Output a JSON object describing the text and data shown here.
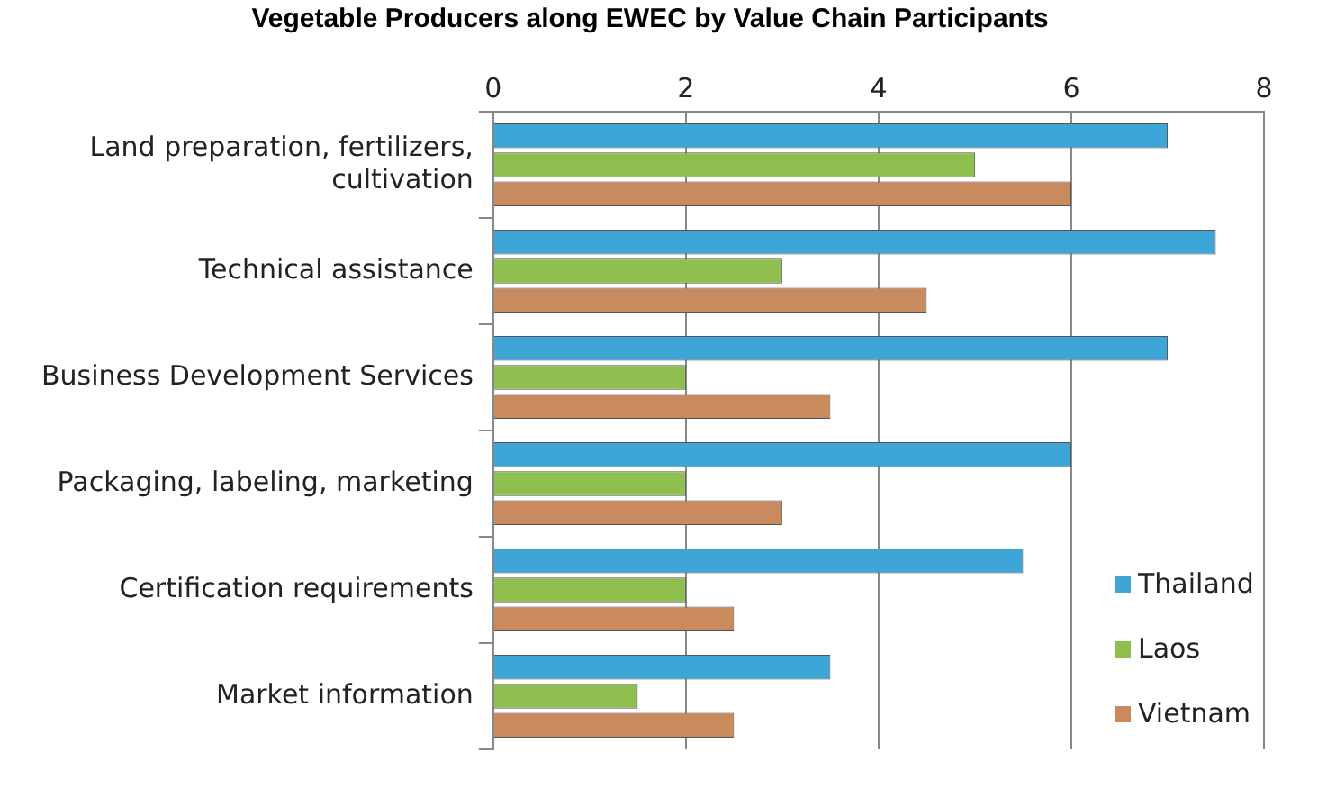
{
  "chart_data": {
    "type": "bar",
    "orientation": "horizontal",
    "title": "Vegetable Producers along EWEC by Value Chain Participants",
    "categories": [
      "Land preparation, fertilizers, cultivation",
      "Technical assistance",
      "Business Development Services",
      "Packaging, labeling, marketing",
      "Certification requirements",
      "Market information"
    ],
    "series": [
      {
        "name": "Thailand",
        "color": "#3ea6d6",
        "values": [
          7,
          7.5,
          7,
          6,
          5.5,
          3.5
        ]
      },
      {
        "name": "Laos",
        "color": "#8fbf4f",
        "values": [
          5,
          3,
          2,
          2,
          2,
          1.5
        ]
      },
      {
        "name": "Vietnam",
        "color": "#c98a5e",
        "values": [
          6,
          4.5,
          3.5,
          3,
          2.5,
          2.5
        ]
      }
    ],
    "xlim": [
      0,
      8
    ],
    "xticks": [
      0,
      2,
      4,
      6,
      8
    ],
    "grid": "x",
    "legend": "bottom right"
  }
}
